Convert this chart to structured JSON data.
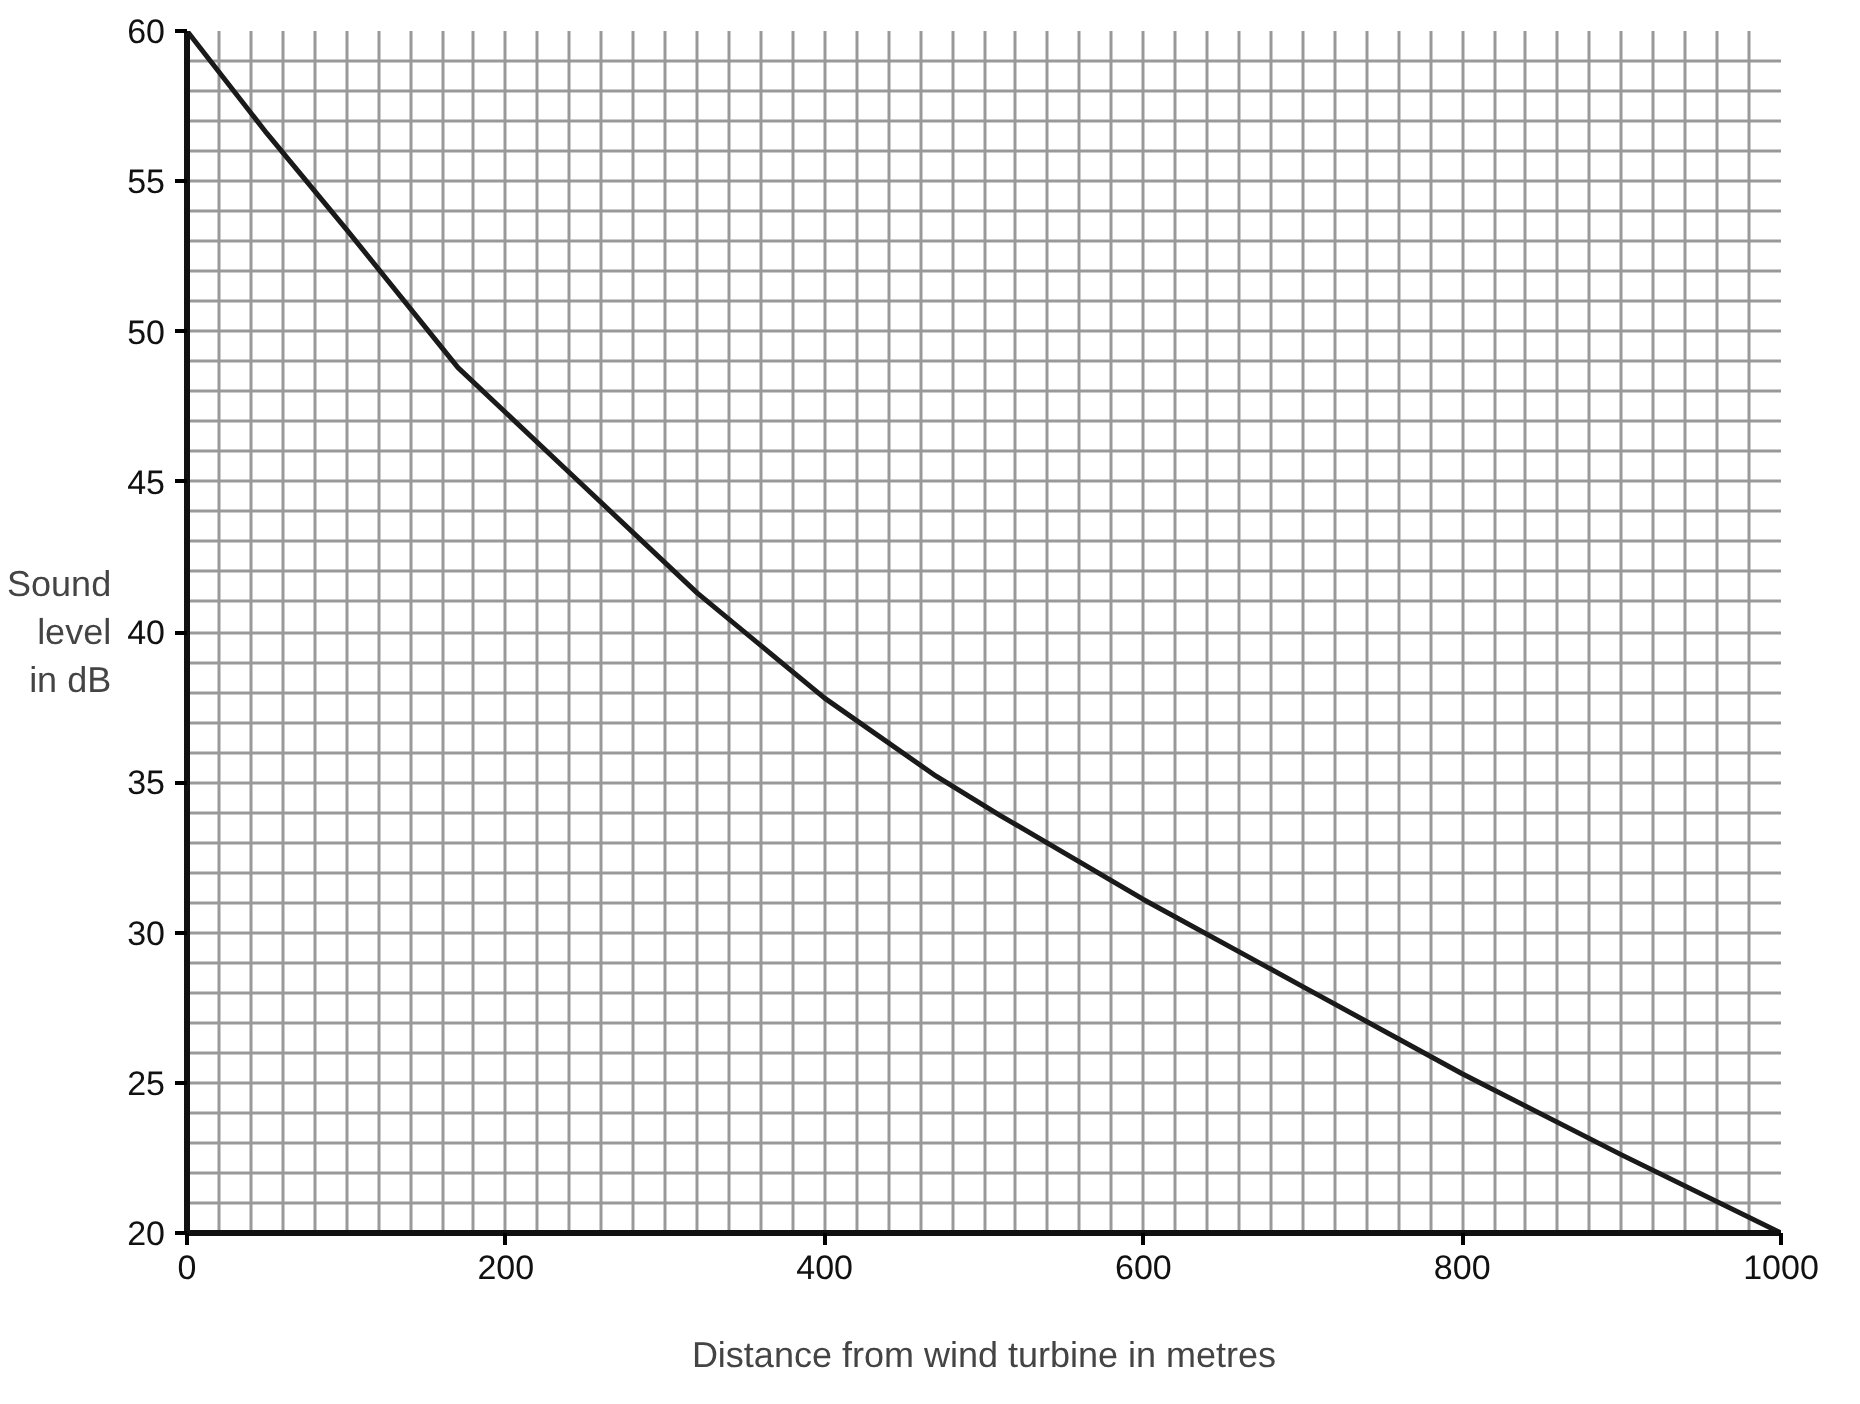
{
  "chart_data": {
    "type": "line",
    "xlabel": "Distance from wind turbine in metres",
    "ylabel": "Sound\nlevel\nin dB",
    "x": [
      0,
      50,
      100,
      170,
      240,
      320,
      400,
      470,
      510,
      600,
      700,
      800,
      900,
      1000
    ],
    "series": [
      {
        "color": "#1a1a1a",
        "values": [
          60,
          56.6,
          53.4,
          48.8,
          45.3,
          41.3,
          37.8,
          35.2,
          33.9,
          31.1,
          28.2,
          25.3,
          22.6,
          20
        ]
      }
    ],
    "xlim": [
      0,
      1000
    ],
    "ylim": [
      20,
      60
    ],
    "xticks": [
      0,
      200,
      400,
      600,
      800,
      1000
    ],
    "yticks": [
      20,
      25,
      30,
      35,
      40,
      45,
      50,
      55,
      60
    ],
    "grid": true,
    "marker": "none",
    "line_style": "solid"
  }
}
